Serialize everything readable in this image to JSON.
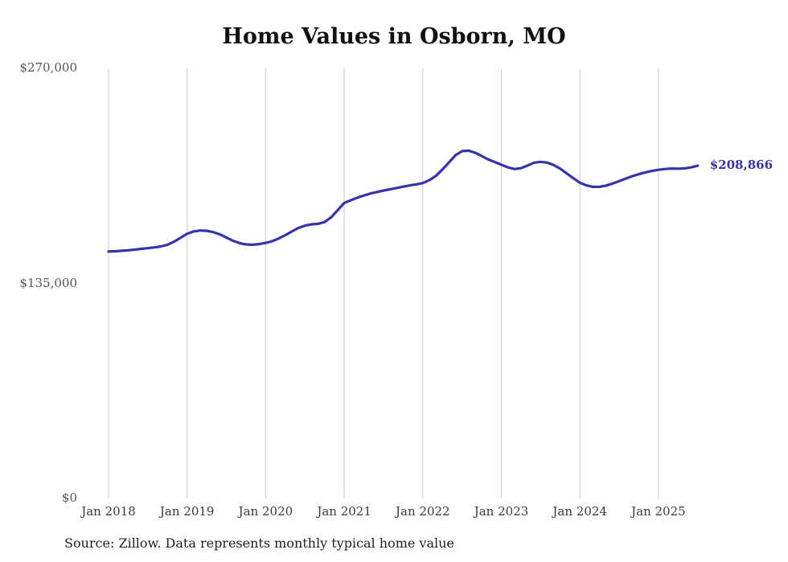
{
  "chart_data": {
    "type": "line",
    "title": "Home Values in Osborn, MO",
    "source_note": "Source: Zillow. Data represents monthly typical home value",
    "xlabel": "",
    "ylabel": "",
    "ylim": [
      0,
      270000
    ],
    "y_ticks": [
      "$270,000",
      "$135,000",
      "$0"
    ],
    "y_tick_values": [
      270000,
      135000,
      0
    ],
    "x_ticks": [
      "Jan 2018",
      "Jan 2019",
      "Jan 2020",
      "Jan 2021",
      "Jan 2022",
      "Jan 2023",
      "Jan 2024",
      "Jan 2025"
    ],
    "grid": "vertical-only",
    "legend": "none",
    "end_label": "$208,866",
    "series": [
      {
        "name": "Typical home value",
        "color": "#3634ad",
        "start": "2018-01",
        "frequency": "monthly",
        "values": [
          155000,
          155200,
          155500,
          155800,
          156200,
          156700,
          157100,
          157600,
          158200,
          159300,
          161200,
          163600,
          166200,
          167600,
          168200,
          168000,
          167200,
          165800,
          163800,
          161800,
          160300,
          159500,
          159300,
          159700,
          160400,
          161500,
          163200,
          165300,
          167600,
          169800,
          171300,
          172100,
          172400,
          173500,
          176500,
          181000,
          185500,
          187200,
          188800,
          190200,
          191400,
          192400,
          193300,
          194100,
          194900,
          195700,
          196500,
          197200,
          198000,
          199800,
          202500,
          206500,
          211000,
          215500,
          218000,
          218300,
          217000,
          215000,
          212800,
          211200,
          209500,
          207800,
          206800,
          207300,
          209000,
          210800,
          211300,
          210800,
          209300,
          207000,
          204000,
          201000,
          198200,
          196500,
          195600,
          195600,
          196400,
          197700,
          199200,
          200800,
          202300,
          203600,
          204700,
          205600,
          206300,
          206800,
          207100,
          207000,
          207200,
          207800,
          208866
        ]
      }
    ],
    "colors": {
      "line": "#3634ad",
      "gridline": "#cccccc",
      "title_text": "#111111",
      "tick_text": "#555555",
      "end_label_text": "#3634ad"
    }
  }
}
